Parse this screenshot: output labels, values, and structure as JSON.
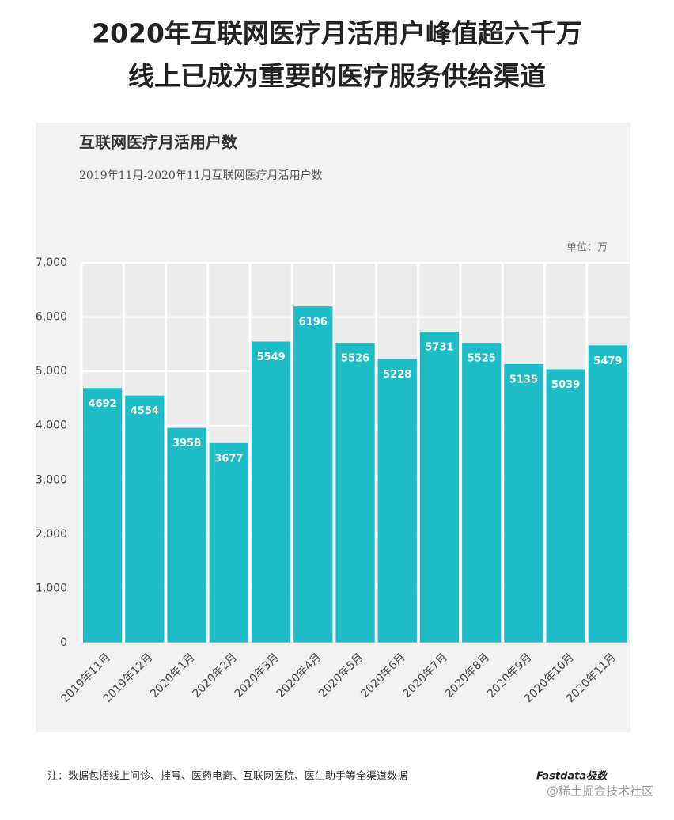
{
  "header": {
    "lines": [
      "2020年互联网医疗月活用户峰值超六千万",
      "线上已成为重要的医疗服务供给渠道"
    ]
  },
  "chart_data": {
    "type": "bar",
    "title": "互联网医疗月活用户数",
    "subtitle": "2019年11月-2020年11月互联网医疗月活用户数",
    "unit_label": "单位：万",
    "categories": [
      "2019年11月",
      "2019年12月",
      "2020年1月",
      "2020年2月",
      "2020年3月",
      "2020年4月",
      "2020年5月",
      "2020年6月",
      "2020年7月",
      "2020年8月",
      "2020年9月",
      "2020年10月",
      "2020年11月"
    ],
    "values": [
      4692,
      4554,
      3958,
      3677,
      5549,
      6196,
      5526,
      5228,
      5731,
      5525,
      5135,
      5039,
      5479
    ],
    "color": "#1ebcc6",
    "ylim": [
      0,
      7000
    ],
    "yticks": [
      0,
      {
        "value": 1000,
        "label": "1,000"
      },
      {
        "value": 2000,
        "label": "2,000"
      },
      {
        "value": 3000,
        "label": "3,000"
      },
      {
        "value": 4000,
        "label": "4,000"
      },
      {
        "value": 5000,
        "label": "5,000"
      },
      {
        "value": 6000,
        "label": "6,000"
      },
      {
        "value": 7000,
        "label": "7,000"
      }
    ],
    "grid": true
  },
  "note": "注：数据包括线上问诊、挂号、医药电商、互联网医院、医生助手等全渠道数据",
  "logo": "Fastdata极数",
  "watermark": "@稀土掘金技术社区"
}
